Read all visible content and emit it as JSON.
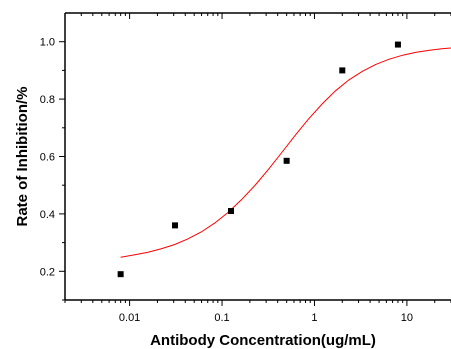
{
  "chart_data": {
    "type": "scatter",
    "xlabel": "Antibody Concentration(ug/mL)",
    "ylabel": "Rate of Inhibition/%",
    "xscale": "log",
    "xlim": [
      0.002,
      30
    ],
    "ylim": [
      0.1,
      1.1
    ],
    "xticks": [
      0.01,
      0.1,
      1,
      10
    ],
    "xtick_labels": [
      "0.01",
      "0.1",
      "1",
      "10"
    ],
    "yticks": [
      0.2,
      0.4,
      0.6,
      0.8,
      1.0
    ],
    "ytick_labels": [
      "0.2",
      "0.4",
      "0.6",
      "0.8",
      "1.0"
    ],
    "grid": false,
    "points": {
      "x": [
        0.008,
        0.031,
        0.125,
        0.5,
        2,
        8
      ],
      "y": [
        0.19,
        0.36,
        0.41,
        0.585,
        0.9,
        0.99
      ]
    },
    "fit": {
      "type": "logistic",
      "x": [
        0.008,
        0.0112,
        0.0156,
        0.0218,
        0.0305,
        0.0426,
        0.0595,
        0.0832,
        0.116,
        0.162,
        0.227,
        0.317,
        0.443,
        0.619,
        0.865,
        1.21,
        1.69,
        2.36,
        3.3,
        4.61,
        6.44,
        9.0,
        12.6,
        17.6,
        24.6,
        30
      ],
      "y": [
        0.249,
        0.257,
        0.266,
        0.278,
        0.293,
        0.313,
        0.337,
        0.368,
        0.405,
        0.449,
        0.499,
        0.555,
        0.614,
        0.674,
        0.731,
        0.783,
        0.829,
        0.867,
        0.897,
        0.921,
        0.939,
        0.953,
        0.963,
        0.97,
        0.976,
        0.978
      ]
    },
    "colors": {
      "points": "#000000",
      "fit_line": "#ff0000",
      "axes": "#000000"
    }
  }
}
